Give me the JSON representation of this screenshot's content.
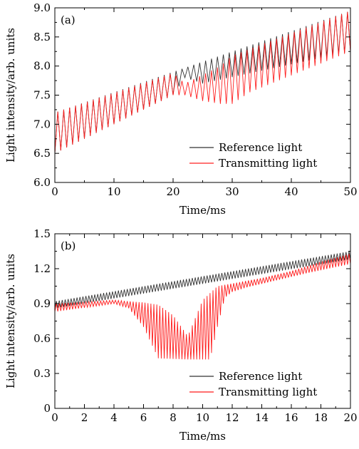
{
  "chart_data": [
    {
      "type": "line",
      "panel_label": "(a)",
      "xlabel": "Time/ms",
      "ylabel": "Light intensity/arb. units",
      "xlim": [
        0,
        50
      ],
      "ylim": [
        6.0,
        9.0
      ],
      "xticks": [
        0,
        10,
        20,
        30,
        40,
        50
      ],
      "yticks": [
        6.0,
        6.5,
        7.0,
        7.5,
        8.0,
        8.5,
        9.0
      ],
      "xtick_labels": [
        "0",
        "10",
        "20",
        "30",
        "40",
        "50"
      ],
      "ytick_labels": [
        "6.0",
        "6.5",
        "7.0",
        "7.5",
        "8.0",
        "8.5",
        "9.0"
      ],
      "legend_position": "bottom-right",
      "series": [
        {
          "name": "Reference light",
          "color": "#333333",
          "style": "oscillating band",
          "lower_envelope": {
            "x": [
              0,
              20,
              22,
              25,
              50
            ],
            "y": [
              6.5,
              7.5,
              7.8,
              7.7,
              8.25
            ]
          },
          "upper_envelope": {
            "x": [
              0,
              50
            ],
            "y": [
              7.2,
              8.95
            ]
          }
        },
        {
          "name": "Transmitting light",
          "color": "#ff2020",
          "style": "oscillating band",
          "lower_envelope": {
            "x": [
              0,
              20,
              22,
              25,
              28,
              30,
              33,
              50
            ],
            "y": [
              6.5,
              7.5,
              7.5,
              7.4,
              7.35,
              7.35,
              7.55,
              8.25
            ]
          },
          "upper_envelope": {
            "x": [
              0,
              20,
              22,
              25,
              28,
              30,
              50
            ],
            "y": [
              7.2,
              7.88,
              7.7,
              7.85,
              8.0,
              8.18,
              8.95
            ]
          }
        }
      ]
    },
    {
      "type": "line",
      "panel_label": "(b)",
      "xlabel": "Time/ms",
      "ylabel": "Light intensity/arb. units",
      "xlim": [
        0,
        20
      ],
      "ylim": [
        0,
        1.5
      ],
      "xticks": [
        0,
        2,
        4,
        6,
        8,
        10,
        12,
        14,
        16,
        18,
        20
      ],
      "yticks": [
        0,
        0.3,
        0.6,
        0.9,
        1.2,
        1.5
      ],
      "xtick_labels": [
        "0",
        "2",
        "4",
        "6",
        "8",
        "10",
        "12",
        "14",
        "16",
        "18",
        "20"
      ],
      "ytick_labels": [
        "0",
        "0.3",
        "0.6",
        "0.9",
        "1.2",
        "1.5"
      ],
      "legend_position": "bottom-right",
      "series": [
        {
          "name": "Reference light",
          "color": "#333333",
          "style": "oscillating band",
          "lower_envelope": {
            "x": [
              0,
              20
            ],
            "y": [
              0.86,
              1.28
            ]
          },
          "upper_envelope": {
            "x": [
              0,
              20
            ],
            "y": [
              0.92,
              1.35
            ]
          }
        },
        {
          "name": "Transmitting light",
          "color": "#ff1a1a",
          "style": "oscillating band",
          "lower_envelope": {
            "x": [
              0,
              4,
              5,
              6,
              7,
              9,
              10.5,
              11,
              11.5,
              12,
              13,
              15,
              17,
              20
            ],
            "y": [
              0.83,
              0.9,
              0.86,
              0.7,
              0.43,
              0.42,
              0.42,
              0.7,
              0.95,
              1.0,
              1.04,
              1.1,
              1.16,
              1.24
            ]
          },
          "upper_envelope": {
            "x": [
              0,
              4,
              5,
              6,
              7,
              8,
              9,
              10,
              11,
              14,
              16,
              18,
              20
            ],
            "y": [
              0.9,
              0.93,
              0.92,
              0.91,
              0.89,
              0.8,
              0.62,
              0.93,
              1.05,
              1.12,
              1.18,
              1.26,
              1.33
            ]
          }
        }
      ]
    }
  ]
}
